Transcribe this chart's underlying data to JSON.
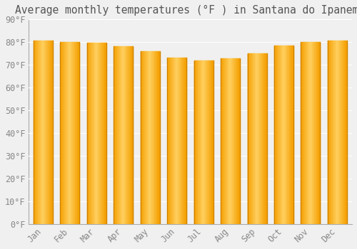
{
  "title": "Average monthly temperatures (°F ) in Santana do Ipanema",
  "months": [
    "Jan",
    "Feb",
    "Mar",
    "Apr",
    "May",
    "Jun",
    "Jul",
    "Aug",
    "Sep",
    "Oct",
    "Nov",
    "Dec"
  ],
  "values": [
    80.6,
    80.2,
    79.7,
    78.3,
    75.9,
    73.2,
    71.8,
    73.0,
    75.2,
    78.6,
    80.1,
    80.8
  ],
  "bar_color_center": "#FFD060",
  "bar_color_edge": "#F5A000",
  "background_color": "#f0f0f0",
  "grid_color": "#ffffff",
  "ylim": [
    0,
    90
  ],
  "ytick_step": 10,
  "title_fontsize": 10.5,
  "tick_fontsize": 8.5,
  "font_color": "#888888",
  "title_color": "#555555"
}
